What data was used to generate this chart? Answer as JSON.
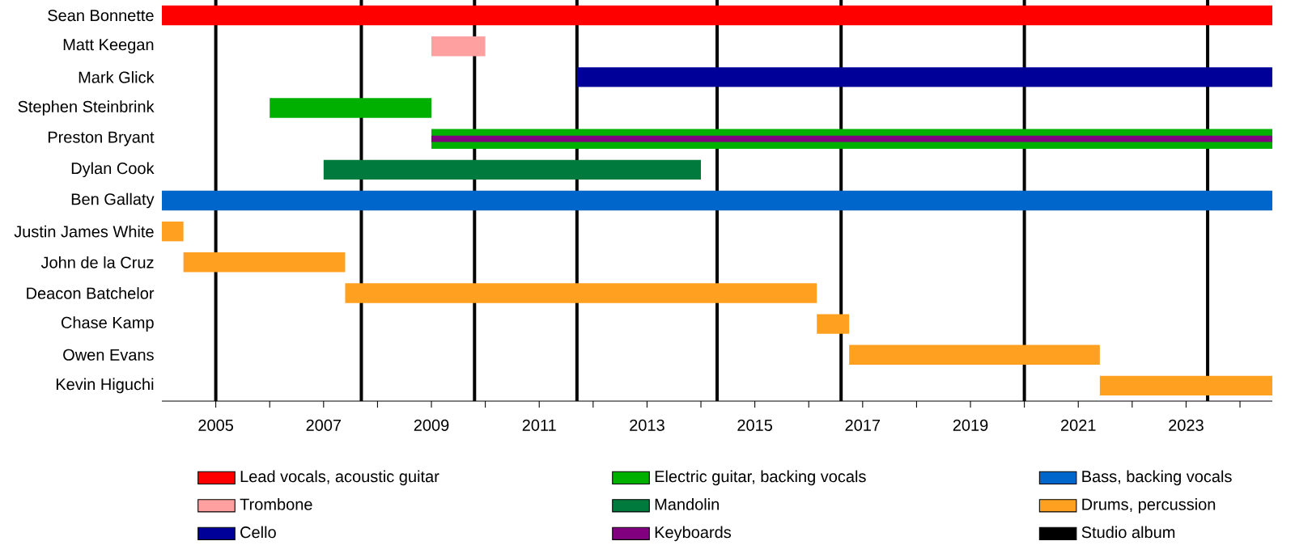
{
  "chart_data": {
    "type": "bar",
    "orientation": "horizontal",
    "categories": [
      "Sean Bonnette",
      "Matt Keegan",
      "Mark Glick",
      "Stephen Steinbrink",
      "Preston Bryant",
      "Dylan Cook",
      "Ben Gallaty",
      "Justin James White",
      "John de la Cruz",
      "Deacon Batchelor",
      "Chase Kamp",
      "Owen Evans",
      "Kevin Higuchi"
    ],
    "series": [
      {
        "name": "Lead vocals, acoustic guitar",
        "color": "#ff0000",
        "base": [
          2004.0,
          null,
          null,
          null,
          null,
          null,
          null,
          null,
          null,
          null,
          null,
          null,
          null
        ],
        "values": [
          20.6,
          null,
          null,
          null,
          null,
          null,
          null,
          null,
          null,
          null,
          null,
          null,
          null
        ]
      },
      {
        "name": "Trombone",
        "color": "#ffa0a0",
        "base": [
          null,
          2009.0,
          null,
          null,
          null,
          null,
          null,
          null,
          null,
          null,
          null,
          null,
          null
        ],
        "values": [
          null,
          1.0,
          null,
          null,
          null,
          null,
          null,
          null,
          null,
          null,
          null,
          null,
          null
        ]
      },
      {
        "name": "Cello",
        "color": "#000099",
        "base": [
          null,
          null,
          2011.7,
          null,
          null,
          null,
          null,
          null,
          null,
          null,
          null,
          null,
          null
        ],
        "values": [
          null,
          null,
          12.9,
          null,
          null,
          null,
          null,
          null,
          null,
          null,
          null,
          null,
          null
        ]
      },
      {
        "name": "Electric guitar, backing vocals",
        "color": "#00b000",
        "base": [
          null,
          null,
          null,
          2006.0,
          2009.0,
          null,
          null,
          null,
          null,
          null,
          null,
          null,
          null
        ],
        "values": [
          null,
          null,
          null,
          3.0,
          15.6,
          null,
          null,
          null,
          null,
          null,
          null,
          null,
          null
        ]
      },
      {
        "name": "Mandolin",
        "color": "#007a3d",
        "base": [
          null,
          null,
          null,
          null,
          null,
          2007.0,
          null,
          null,
          null,
          null,
          null,
          null,
          null
        ],
        "values": [
          null,
          null,
          null,
          null,
          null,
          7.0,
          null,
          null,
          null,
          null,
          null,
          null,
          null
        ]
      },
      {
        "name": "Keyboards",
        "color": "#800080",
        "base": [
          null,
          null,
          null,
          null,
          2009.0,
          null,
          null,
          null,
          null,
          null,
          null,
          null,
          null
        ],
        "values": [
          null,
          null,
          null,
          null,
          15.6,
          null,
          null,
          null,
          null,
          null,
          null,
          null,
          null
        ]
      },
      {
        "name": "Bass, backing vocals",
        "color": "#0066cc",
        "base": [
          null,
          null,
          null,
          null,
          null,
          null,
          2004.0,
          null,
          null,
          null,
          null,
          null,
          null
        ],
        "values": [
          null,
          null,
          null,
          null,
          null,
          null,
          20.6,
          null,
          null,
          null,
          null,
          null,
          null
        ]
      },
      {
        "name": "Drums, percussion",
        "color": "#ffa020",
        "base": [
          null,
          null,
          null,
          null,
          null,
          null,
          null,
          2004.0,
          2004.4,
          2007.4,
          2016.15,
          2016.75,
          2021.4
        ],
        "values": [
          null,
          null,
          null,
          null,
          null,
          null,
          null,
          0.4,
          3.0,
          8.75,
          0.6,
          4.65,
          3.2
        ]
      }
    ],
    "ref_lines": [
      {
        "axis": "x",
        "value": 2005.0,
        "color": "#000000",
        "label": "Studio album"
      },
      {
        "axis": "x",
        "value": 2007.7,
        "color": "#000000"
      },
      {
        "axis": "x",
        "value": 2009.8,
        "color": "#000000"
      },
      {
        "axis": "x",
        "value": 2011.7,
        "color": "#000000"
      },
      {
        "axis": "x",
        "value": 2014.3,
        "color": "#000000"
      },
      {
        "axis": "x",
        "value": 2016.6,
        "color": "#000000"
      },
      {
        "axis": "x",
        "value": 2020.0,
        "color": "#000000"
      },
      {
        "axis": "x",
        "value": 2023.4,
        "color": "#000000"
      }
    ],
    "xlim": [
      2004.0,
      2024.6
    ],
    "xticks": [
      2005,
      {
        "value": 2006,
        "label": null
      },
      2007,
      {
        "value": 2008,
        "label": null
      },
      2009,
      {
        "value": 2010,
        "label": null
      },
      2011,
      {
        "value": 2012,
        "label": null
      },
      2013,
      {
        "value": 2014,
        "label": null
      },
      2015,
      {
        "value": 2016,
        "label": null
      },
      2017,
      {
        "value": 2018,
        "label": null
      },
      2019,
      {
        "value": 2020,
        "label": null
      },
      2021,
      {
        "value": 2022,
        "label": null
      },
      2023,
      {
        "value": 2024,
        "label": null
      }
    ],
    "legend": "bottom"
  }
}
